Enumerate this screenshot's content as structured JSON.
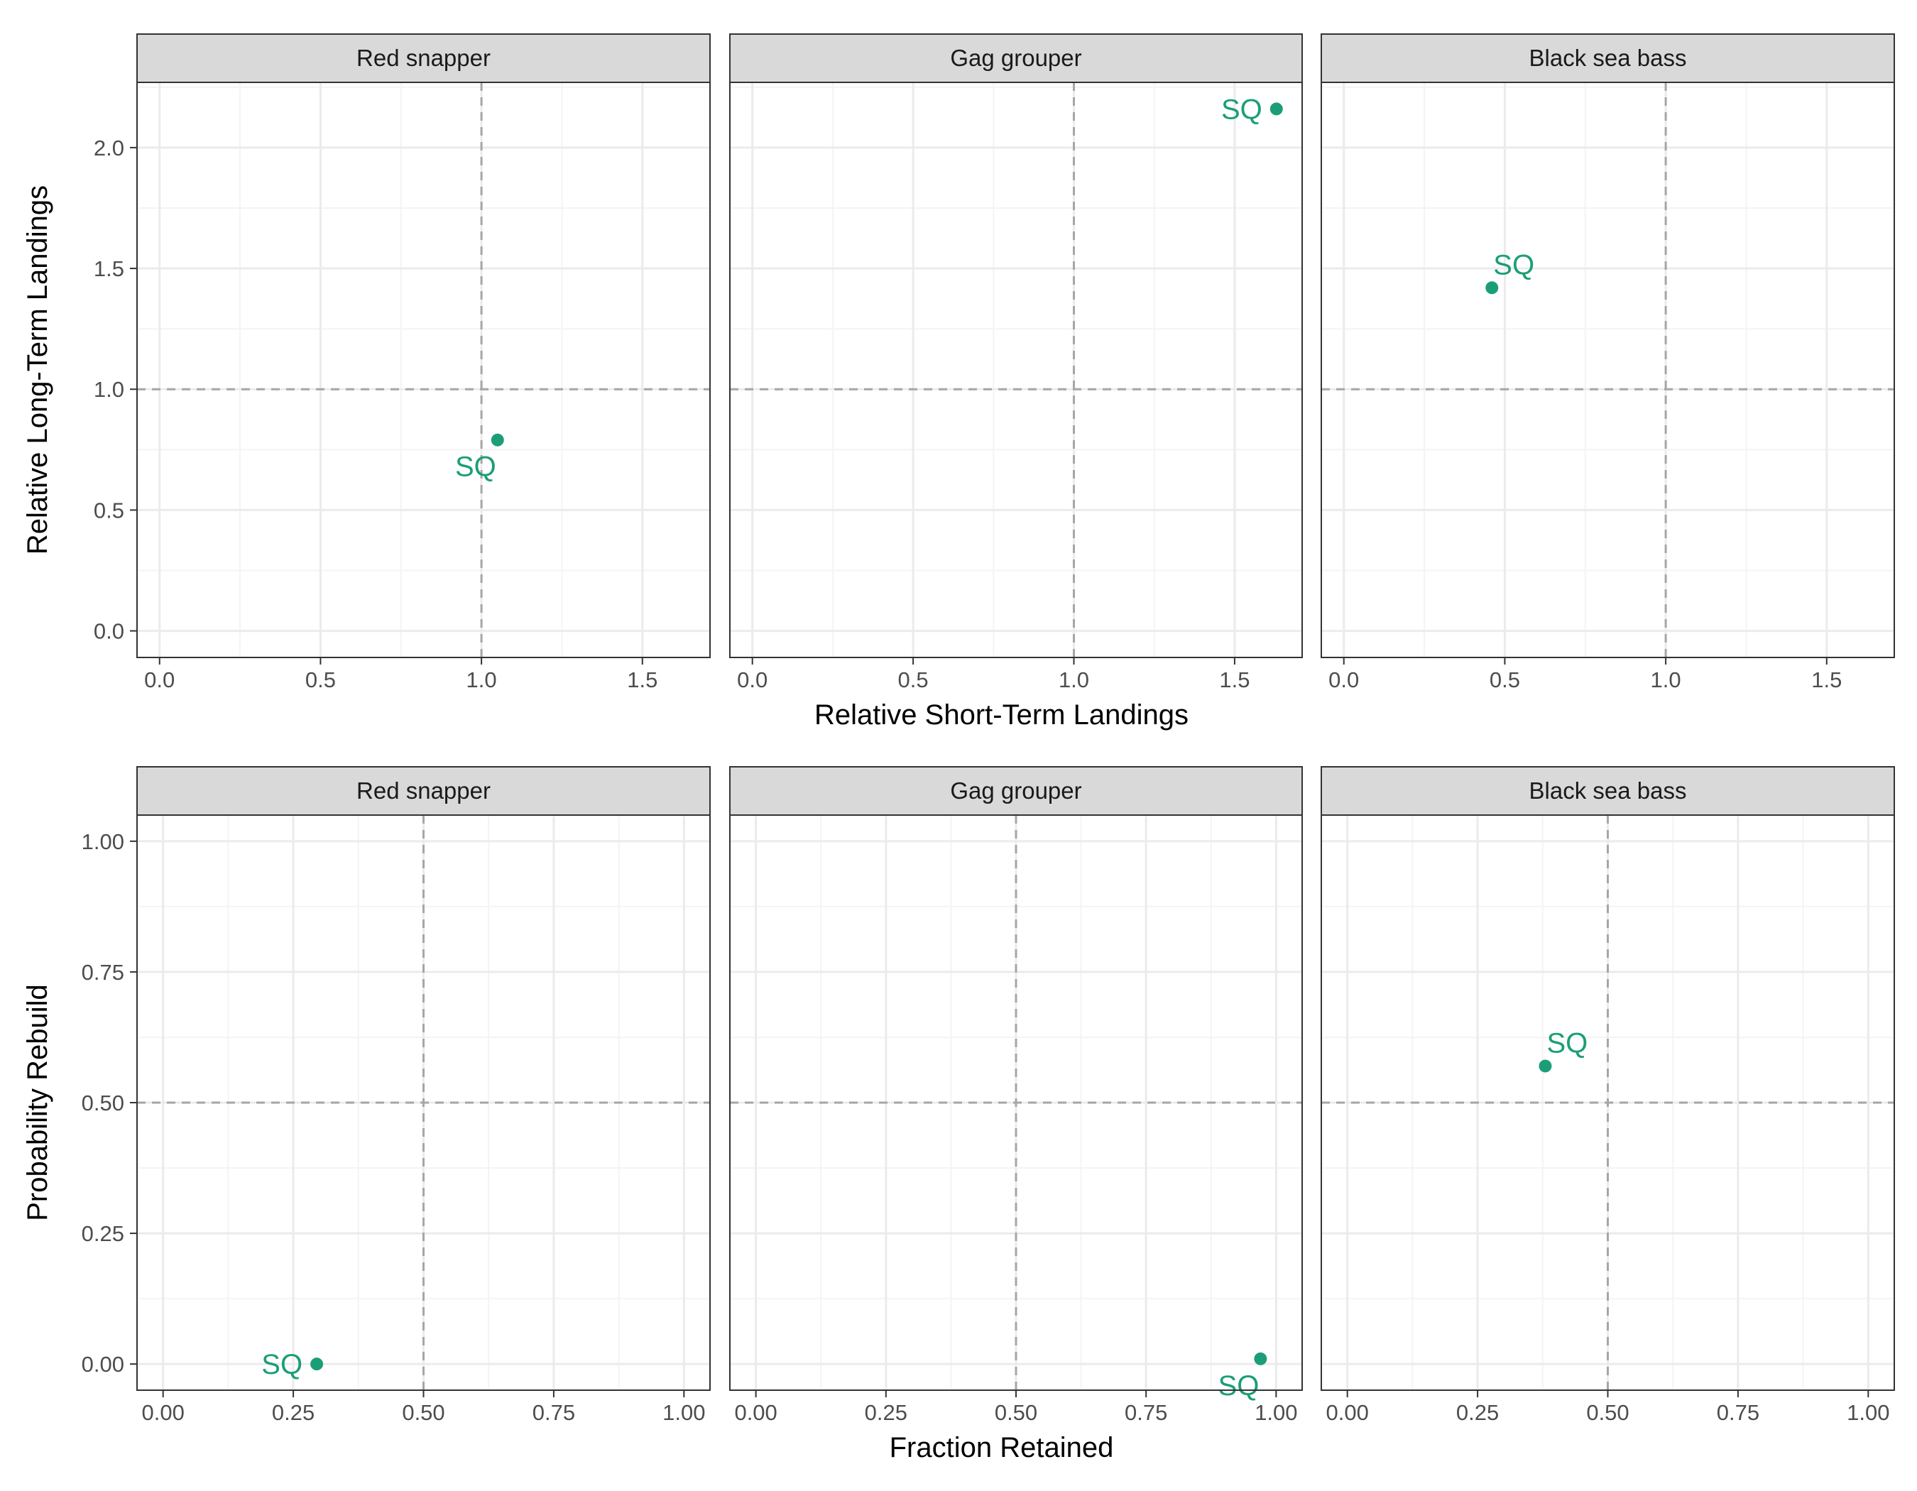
{
  "colors": {
    "point": "#1b9e77",
    "strip_fill": "#d9d9d9",
    "panel_border": "#333333",
    "grid_major": "#ebebeb",
    "grid_minor": "#f4f4f4",
    "reference_line": "#a6a6a6"
  },
  "chart_data": [
    {
      "type": "scatter",
      "facet_by": "species",
      "xlabel": "Relative Short-Term Landings",
      "ylabel": "Relative Long-Term Landings",
      "xlim": [
        -0.07,
        1.71
      ],
      "ylim": [
        -0.11,
        2.27
      ],
      "xticks": [
        0,
        0.5,
        1,
        1.5
      ],
      "xtick_labels": [
        "0.0",
        "0.5",
        "1.0",
        "1.5"
      ],
      "yticks": [
        0,
        0.5,
        1,
        1.5,
        2
      ],
      "ytick_labels": [
        "0.0",
        "0.5",
        "1.0",
        "1.5",
        "2.0"
      ],
      "reference_lines": {
        "x": 1.0,
        "y": 1.0,
        "style": "dashed"
      },
      "grid": true,
      "panels": [
        {
          "title": "Red snapper",
          "points": [
            {
              "x": 1.05,
              "y": 0.79,
              "label": "SQ",
              "label_pos": "bottom-left"
            }
          ]
        },
        {
          "title": "Gag grouper",
          "points": [
            {
              "x": 1.63,
              "y": 2.16,
              "label": "SQ",
              "label_pos": "left"
            }
          ]
        },
        {
          "title": "Black sea bass",
          "points": [
            {
              "x": 0.46,
              "y": 1.42,
              "label": "SQ",
              "label_pos": "top-right"
            }
          ]
        }
      ]
    },
    {
      "type": "scatter",
      "facet_by": "species",
      "xlabel": "Fraction Retained",
      "ylabel": "Probability Rebuild",
      "xlim": [
        -0.05,
        1.05
      ],
      "ylim": [
        -0.05,
        1.05
      ],
      "xticks": [
        0,
        0.25,
        0.5,
        0.75,
        1
      ],
      "xtick_labels": [
        "0.00",
        "0.25",
        "0.50",
        "0.75",
        "1.00"
      ],
      "yticks": [
        0,
        0.25,
        0.5,
        0.75,
        1
      ],
      "ytick_labels": [
        "0.00",
        "0.25",
        "0.50",
        "0.75",
        "1.00"
      ],
      "reference_lines": {
        "x": 0.5,
        "y": 0.5,
        "style": "dashed"
      },
      "grid": true,
      "panels": [
        {
          "title": "Red snapper",
          "points": [
            {
              "x": 0.295,
              "y": 0.0,
              "label": "SQ",
              "label_pos": "left"
            }
          ]
        },
        {
          "title": "Gag grouper",
          "points": [
            {
              "x": 0.97,
              "y": 0.01,
              "label": "SQ",
              "label_pos": "bottom-left"
            }
          ]
        },
        {
          "title": "Black sea bass",
          "points": [
            {
              "x": 0.38,
              "y": 0.57,
              "label": "SQ",
              "label_pos": "top-right"
            }
          ]
        }
      ]
    }
  ]
}
